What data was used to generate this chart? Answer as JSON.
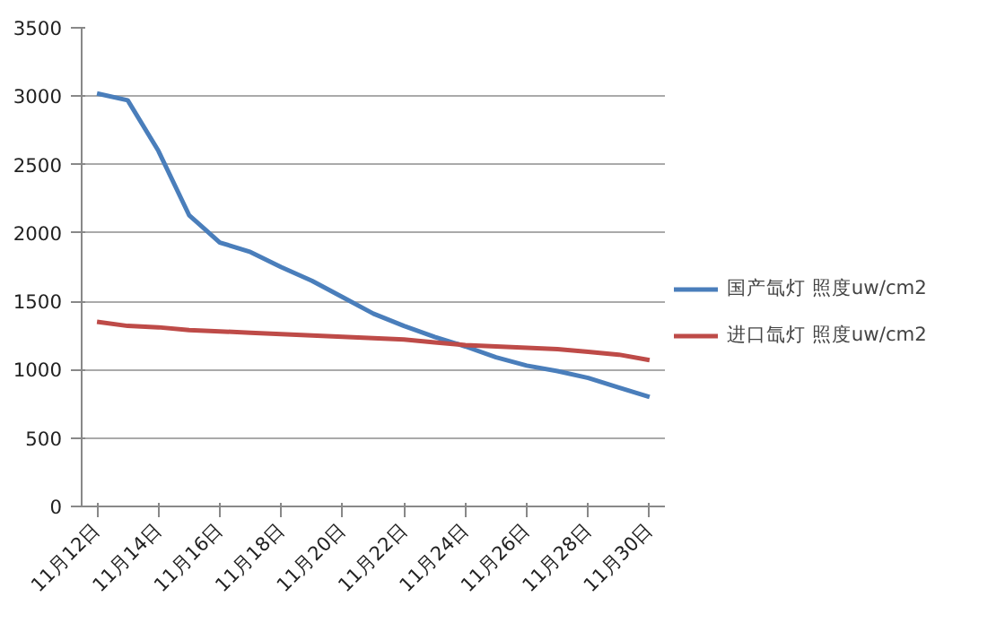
{
  "chart_data": {
    "type": "line",
    "categories": [
      "11月12日",
      null,
      "11月14日",
      null,
      "11月16日",
      null,
      "11月18日",
      null,
      "11月20日",
      null,
      "11月22日",
      null,
      "11月24日",
      null,
      "11月26日",
      null,
      "11月28日",
      null,
      "11月30日"
    ],
    "series": [
      {
        "name": "国产氙灯 照度uw/cm2",
        "color": "#4a7ebb",
        "values": [
          3020,
          2970,
          2600,
          2130,
          1930,
          1860,
          1750,
          1650,
          1530,
          1410,
          1320,
          1240,
          1170,
          1090,
          1030,
          990,
          940,
          870,
          800
        ]
      },
      {
        "name": "进口氙灯 照度uw/cm2",
        "color": "#be4b48",
        "values": [
          1350,
          1320,
          1310,
          1290,
          1280,
          1270,
          1260,
          1250,
          1240,
          1230,
          1220,
          1200,
          1180,
          1170,
          1160,
          1150,
          1130,
          1110,
          1070
        ]
      }
    ],
    "ylim": [
      0,
      3500
    ],
    "yticks": [
      0,
      500,
      1000,
      1500,
      2000,
      2500,
      3000,
      3500
    ],
    "grid": "y",
    "legend": "right",
    "marker": "none",
    "line_style": "solid"
  }
}
